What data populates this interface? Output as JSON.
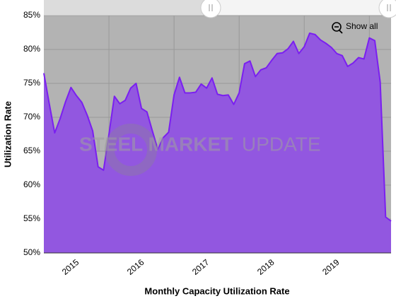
{
  "chart_data": {
    "type": "area",
    "y_axis_label": "Utilization Rate",
    "x_axis_label": "Monthly Capacity Utilization Rate",
    "watermark": [
      "STEEL MARKET",
      "UPDATE"
    ],
    "button": "Show all",
    "categories": [
      null,
      null,
      null,
      null,
      null,
      "2015",
      null,
      null,
      null,
      null,
      null,
      null,
      null,
      null,
      null,
      null,
      null,
      "2016",
      null,
      null,
      null,
      null,
      null,
      null,
      null,
      null,
      null,
      null,
      null,
      "2017",
      null,
      null,
      null,
      null,
      null,
      null,
      null,
      null,
      null,
      null,
      null,
      "2018",
      null,
      null,
      null,
      null,
      null,
      null,
      null,
      null,
      null,
      null,
      null,
      "2019",
      null,
      null,
      null,
      null,
      null,
      null,
      null,
      null,
      null,
      null,
      null
    ],
    "values": [
      76.5,
      72.0,
      67.7,
      69.8,
      72.3,
      74.4,
      73.2,
      72.2,
      70.3,
      68.0,
      62.7,
      62.2,
      67.5,
      73.1,
      72.0,
      72.5,
      74.3,
      75.0,
      71.3,
      70.8,
      68.0,
      65.3,
      67.0,
      67.8,
      73.3,
      75.9,
      73.6,
      73.6,
      73.7,
      74.9,
      74.3,
      75.8,
      73.4,
      73.2,
      73.3,
      71.9,
      73.6,
      77.9,
      78.3,
      76.0,
      77.0,
      77.3,
      78.4,
      79.4,
      79.5,
      80.1,
      81.2,
      79.4,
      80.4,
      82.4,
      82.2,
      81.4,
      80.9,
      80.3,
      79.4,
      79.1,
      77.5,
      78.0,
      78.8,
      78.6,
      81.7,
      81.3,
      75.2,
      55.3,
      54.7
    ],
    "color": "#9257e0",
    "line_color": "#7a1ff0",
    "ylim": [
      50,
      85
    ],
    "yticks": [
      {
        "value": 50,
        "label": "50%"
      },
      {
        "value": 55,
        "label": "55%"
      },
      {
        "value": 60,
        "label": "60%"
      },
      {
        "value": 65,
        "label": "65%"
      },
      {
        "value": 70,
        "label": "70%"
      },
      {
        "value": 75,
        "label": "75%"
      },
      {
        "value": 80,
        "label": "80%"
      },
      {
        "value": 85,
        "label": "85%"
      }
    ],
    "grid": true
  }
}
